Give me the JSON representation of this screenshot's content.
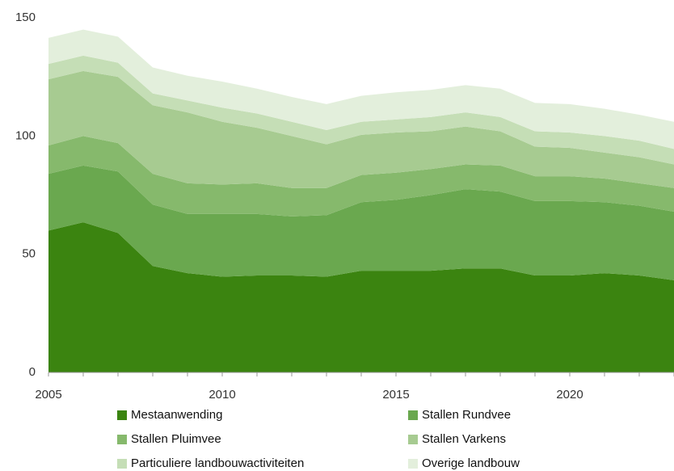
{
  "chart_data": {
    "type": "stacked_area",
    "x": [
      2005,
      2006,
      2007,
      2008,
      2009,
      2010,
      2011,
      2012,
      2013,
      2014,
      2015,
      2016,
      2017,
      2018,
      2019,
      2020,
      2021,
      2022,
      2023
    ],
    "series": [
      {
        "name": "Mestaanwending",
        "color": "#3b8410",
        "values": [
          60,
          63.5,
          59,
          45,
          42,
          40.5,
          41,
          41,
          40.5,
          43,
          43,
          43,
          44,
          44,
          41,
          41,
          42,
          41,
          39
        ]
      },
      {
        "name": "Stallen Rundvee",
        "color": "#6aa84f",
        "values": [
          24,
          24,
          26,
          26,
          25,
          26.5,
          26,
          25,
          26,
          29,
          30,
          32,
          33.5,
          32.5,
          31.5,
          31.5,
          30,
          29.5,
          29
        ]
      },
      {
        "name": "Stallen Pluimvee",
        "color": "#86b96c",
        "values": [
          12,
          12.5,
          12,
          13,
          13,
          12.5,
          13,
          12,
          11.5,
          11.5,
          11.5,
          11,
          10.5,
          11,
          10.5,
          10.5,
          10,
          9.5,
          10
        ]
      },
      {
        "name": "Stallen Varkens",
        "color": "#a7cb91",
        "values": [
          28,
          27.5,
          28,
          29,
          30,
          26.5,
          23.5,
          22,
          18.5,
          17,
          17,
          16,
          16,
          14.5,
          12.5,
          12,
          11,
          11,
          10
        ]
      },
      {
        "name": "Particuliere landbouwactiviteiten",
        "color": "#c5deb6",
        "values": [
          6.5,
          6.5,
          6,
          5,
          5,
          6,
          6,
          6,
          6,
          5.5,
          5.5,
          6,
          6,
          6,
          6.5,
          6.5,
          7,
          7,
          6.5
        ]
      },
      {
        "name": "Overige landbouw",
        "color": "#e3efdc",
        "values": [
          11,
          11,
          11,
          11,
          10.5,
          11,
          10.5,
          10.5,
          11,
          11,
          11.5,
          11.5,
          11.5,
          12,
          12,
          12,
          11.5,
          11,
          11.5
        ]
      }
    ],
    "xlim": [
      2005,
      2023
    ],
    "xticks": [
      2005,
      2010,
      2015,
      2020
    ],
    "ylim": [
      0,
      150
    ],
    "yticks": [
      0,
      50,
      100,
      150
    ]
  }
}
